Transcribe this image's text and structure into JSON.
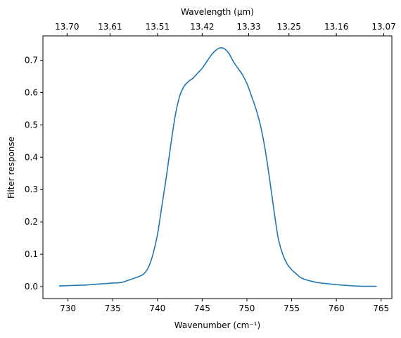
{
  "chart_data": {
    "type": "line",
    "xlabel": "Wavenumber (cm⁻¹)",
    "ylabel": "Filter response",
    "top_xlabel": "Wavelength (μm)",
    "xlim": [
      727.2,
      766.2
    ],
    "ylim": [
      -0.037,
      0.775
    ],
    "x_ticks": [
      730,
      735,
      740,
      745,
      750,
      755,
      760,
      765
    ],
    "y_ticks": [
      "0.0",
      "0.1",
      "0.2",
      "0.3",
      "0.4",
      "0.5",
      "0.6",
      "0.7"
    ],
    "top_ticks": [
      {
        "label": "13.70",
        "x": 729.9
      },
      {
        "label": "13.61",
        "x": 734.7
      },
      {
        "label": "13.51",
        "x": 740.0
      },
      {
        "label": "13.42",
        "x": 745.0
      },
      {
        "label": "13.33",
        "x": 750.2
      },
      {
        "label": "13.25",
        "x": 754.7
      },
      {
        "label": "13.16",
        "x": 760.0
      },
      {
        "label": "13.07",
        "x": 765.3
      }
    ],
    "line_color": "#1f77b4",
    "series": [
      {
        "name": "",
        "x": [
          729.0,
          730.0,
          731.0,
          732.0,
          733.0,
          734.0,
          735.0,
          736.0,
          737.0,
          738.0,
          738.5,
          739.0,
          739.5,
          740.0,
          740.5,
          741.0,
          741.5,
          742.0,
          742.5,
          743.0,
          743.5,
          744.0,
          744.5,
          745.0,
          745.5,
          746.0,
          746.5,
          747.0,
          747.5,
          748.0,
          748.5,
          749.0,
          749.5,
          750.0,
          750.5,
          751.0,
          751.5,
          752.0,
          752.5,
          753.0,
          753.5,
          754.0,
          754.5,
          755.0,
          755.5,
          756.0,
          756.5,
          757.0,
          758.0,
          759.0,
          760.0,
          761.0,
          762.0,
          763.0,
          764.5
        ],
        "y": [
          0.002,
          0.003,
          0.004,
          0.005,
          0.007,
          0.009,
          0.011,
          0.013,
          0.022,
          0.032,
          0.04,
          0.06,
          0.1,
          0.16,
          0.25,
          0.34,
          0.44,
          0.53,
          0.59,
          0.62,
          0.635,
          0.645,
          0.66,
          0.675,
          0.695,
          0.715,
          0.73,
          0.738,
          0.735,
          0.72,
          0.695,
          0.675,
          0.655,
          0.628,
          0.59,
          0.55,
          0.5,
          0.43,
          0.34,
          0.24,
          0.15,
          0.1,
          0.07,
          0.052,
          0.04,
          0.028,
          0.022,
          0.018,
          0.012,
          0.009,
          0.006,
          0.004,
          0.002,
          0.001,
          0.001
        ]
      }
    ]
  }
}
